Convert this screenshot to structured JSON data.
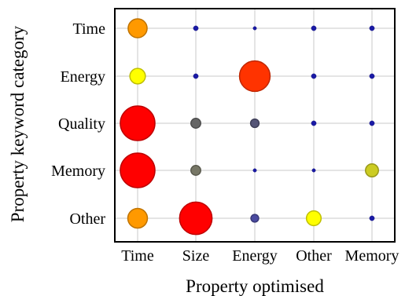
{
  "chart_data": {
    "type": "scatter",
    "subtype": "bubble-matrix",
    "xlabel": "Property optimised",
    "ylabel": "Property keyword category",
    "x_categories": [
      "Time",
      "Size",
      "Energy",
      "Other",
      "Memory"
    ],
    "y_categories": [
      "Time",
      "Energy",
      "Quality",
      "Memory",
      "Other"
    ],
    "grid": true,
    "legend": "none",
    "points": [
      {
        "x": "Time",
        "y": "Time",
        "size": 0.3,
        "color": "#ff9900"
      },
      {
        "x": "Size",
        "y": "Time",
        "size": 0.02,
        "color": "#1a1aa6"
      },
      {
        "x": "Energy",
        "y": "Time",
        "size": 0.01,
        "color": "#1a1aa6"
      },
      {
        "x": "Other",
        "y": "Time",
        "size": 0.02,
        "color": "#1a1aa6"
      },
      {
        "x": "Memory",
        "y": "Time",
        "size": 0.02,
        "color": "#1a1aa6"
      },
      {
        "x": "Time",
        "y": "Energy",
        "size": 0.2,
        "color": "#ffff00"
      },
      {
        "x": "Size",
        "y": "Energy",
        "size": 0.02,
        "color": "#1a1aa6"
      },
      {
        "x": "Energy",
        "y": "Energy",
        "size": 0.78,
        "color": "#ff3300"
      },
      {
        "x": "Other",
        "y": "Energy",
        "size": 0.02,
        "color": "#1a1aa6"
      },
      {
        "x": "Memory",
        "y": "Energy",
        "size": 0.02,
        "color": "#1a1aa6"
      },
      {
        "x": "Time",
        "y": "Quality",
        "size": 1.0,
        "color": "#ff0000"
      },
      {
        "x": "Size",
        "y": "Quality",
        "size": 0.08,
        "color": "#666666"
      },
      {
        "x": "Energy",
        "y": "Quality",
        "size": 0.06,
        "color": "#555577"
      },
      {
        "x": "Other",
        "y": "Quality",
        "size": 0.02,
        "color": "#1a1aa6"
      },
      {
        "x": "Memory",
        "y": "Quality",
        "size": 0.02,
        "color": "#1a1aa6"
      },
      {
        "x": "Time",
        "y": "Memory",
        "size": 1.0,
        "color": "#ff0000"
      },
      {
        "x": "Size",
        "y": "Memory",
        "size": 0.08,
        "color": "#777766"
      },
      {
        "x": "Energy",
        "y": "Memory",
        "size": 0.01,
        "color": "#1a1aa6"
      },
      {
        "x": "Other",
        "y": "Memory",
        "size": 0.01,
        "color": "#1a1aa6"
      },
      {
        "x": "Memory",
        "y": "Memory",
        "size": 0.14,
        "color": "#cccc22"
      },
      {
        "x": "Time",
        "y": "Other",
        "size": 0.32,
        "color": "#ff9900"
      },
      {
        "x": "Size",
        "y": "Other",
        "size": 0.88,
        "color": "#ff0000"
      },
      {
        "x": "Energy",
        "y": "Other",
        "size": 0.05,
        "color": "#4a4aa0"
      },
      {
        "x": "Other",
        "y": "Other",
        "size": 0.18,
        "color": "#ffff00"
      },
      {
        "x": "Memory",
        "y": "Other",
        "size": 0.02,
        "color": "#1a1aa6"
      }
    ]
  }
}
